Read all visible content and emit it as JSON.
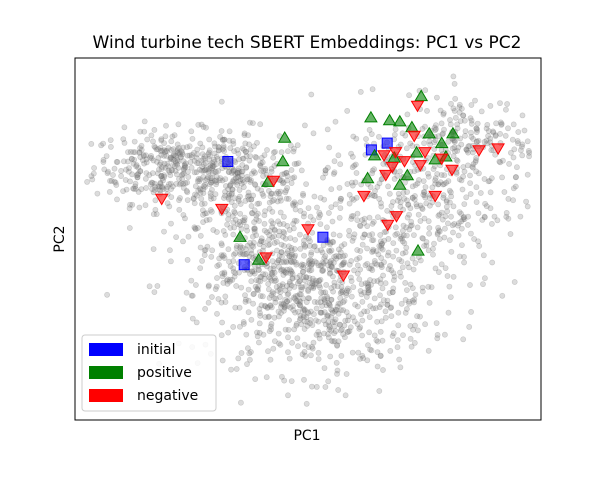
{
  "chart_data": {
    "type": "scatter",
    "title": "Wind turbine tech SBERT Embeddings: PC1 vs PC2",
    "xlabel": "PC1",
    "ylabel": "PC2",
    "xlim": [
      0,
      100
    ],
    "ylim": [
      0,
      100
    ],
    "ticks": "hidden",
    "grid": false,
    "legend_position": "lower-left",
    "background_cloud": {
      "color": "#808080",
      "opacity": 0.28,
      "approx_count": 2000,
      "clusters": [
        {
          "cx": 20,
          "cy": 70,
          "sx": 8,
          "sy": 5,
          "n": 320
        },
        {
          "cx": 35,
          "cy": 65,
          "sx": 8,
          "sy": 7,
          "n": 300
        },
        {
          "cx": 52,
          "cy": 33,
          "sx": 12,
          "sy": 10,
          "n": 650
        },
        {
          "cx": 70,
          "cy": 60,
          "sx": 13,
          "sy": 12,
          "n": 480
        },
        {
          "cx": 85,
          "cy": 78,
          "sx": 7,
          "sy": 6,
          "n": 160
        },
        {
          "cx": 40,
          "cy": 45,
          "sx": 8,
          "sy": 6,
          "n": 200
        }
      ]
    },
    "series": [
      {
        "name": "initial",
        "color": "#0000ff",
        "marker": "square",
        "points": [
          [
            32.8,
            71.4
          ],
          [
            36.3,
            42.9
          ],
          [
            53.2,
            50.5
          ],
          [
            63.6,
            74.6
          ],
          [
            67.0,
            76.5
          ]
        ]
      },
      {
        "name": "positive",
        "color": "#008000",
        "marker": "triangle-up",
        "points": [
          [
            74.3,
            89.4
          ],
          [
            63.5,
            83.5
          ],
          [
            67.5,
            82.7
          ],
          [
            69.7,
            82.4
          ],
          [
            72.3,
            80.8
          ],
          [
            81.1,
            79.1
          ],
          [
            76.0,
            79.1
          ],
          [
            78.7,
            76.4
          ],
          [
            73.3,
            73.8
          ],
          [
            64.3,
            73.0
          ],
          [
            45.0,
            77.9
          ],
          [
            44.6,
            71.4
          ],
          [
            41.4,
            65.7
          ],
          [
            77.3,
            71.9
          ],
          [
            79.6,
            72.7
          ],
          [
            68.5,
            72.4
          ],
          [
            62.8,
            66.7
          ],
          [
            71.3,
            67.5
          ],
          [
            69.7,
            64.9
          ],
          [
            35.4,
            50.5
          ],
          [
            39.4,
            44.2
          ],
          [
            73.6,
            46.7
          ]
        ]
      },
      {
        "name": "negative",
        "color": "#ff0000",
        "marker": "triangle-down",
        "points": [
          [
            73.5,
            86.9
          ],
          [
            72.8,
            78.6
          ],
          [
            86.7,
            74.6
          ],
          [
            90.8,
            75.1
          ],
          [
            66.3,
            73.2
          ],
          [
            68.8,
            74.1
          ],
          [
            70.7,
            71.6
          ],
          [
            75.1,
            74.1
          ],
          [
            78.7,
            72.3
          ],
          [
            68.1,
            70.0
          ],
          [
            80.9,
            69.2
          ],
          [
            74.1,
            70.5
          ],
          [
            66.7,
            67.8
          ],
          [
            77.3,
            62.0
          ],
          [
            62.0,
            62.0
          ],
          [
            42.6,
            66.2
          ],
          [
            18.6,
            61.2
          ],
          [
            31.5,
            58.4
          ],
          [
            69.0,
            56.4
          ],
          [
            67.1,
            54.0
          ],
          [
            50.0,
            52.8
          ],
          [
            41.0,
            45.0
          ],
          [
            57.6,
            40.0
          ]
        ]
      }
    ]
  }
}
